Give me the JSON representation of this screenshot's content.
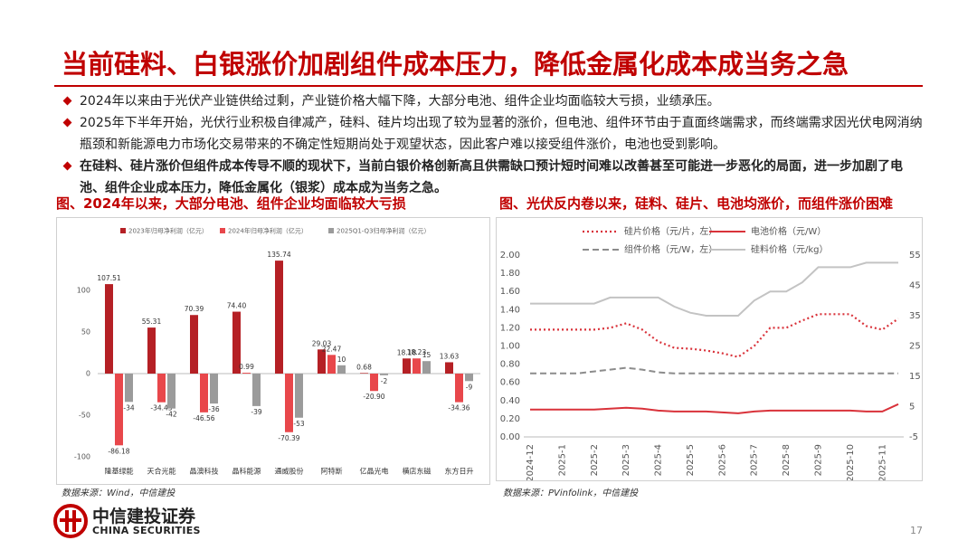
{
  "header": {
    "title": "当前硅料、白银涨价加剧组件成本压力，降低金属化成本成当务之急"
  },
  "bullets": [
    "2024年以来由于光伏产业链供给过剩，产业链价格大幅下降，大部分电池、组件企业均面临较大亏损，业绩承压。",
    "2025年下半年开始，光伏行业积极自律减产，硅料、硅片均出现了较为显著的涨价，但电池、组件环节由于直面终端需求，而终端需求因光伏电网消纳瓶颈和新能源电力市场化交易带来的不确定性短期尚处于观望状态，因此客户难以接受组件涨价，电池也受到影响。",
    "在硅料、硅片涨价但组件成本传导不顺的现状下，当前白银价格创新高且供需缺口预计短时间难以改善甚至可能进一步恶化的局面，进一步加剧了电池、组件企业成本压力，降低金属化（银浆）成本成为当务之急。"
  ],
  "chart_data": [
    {
      "type": "bar",
      "title": "图、2024年以来，大部分电池、组件企业均面临较大亏损",
      "source": "数据来源：Wind，中信建投",
      "categories": [
        "隆基绿能",
        "天合光能",
        "晶澳科技",
        "晶科能源",
        "通威股份",
        "阿特斯",
        "亿晶光电",
        "横店东磁",
        "东方日升"
      ],
      "series": [
        {
          "name": "2023年归母净利润（亿元）",
          "color": "#b52025",
          "values": [
            107.51,
            55.31,
            70.39,
            74.4,
            135.74,
            29.03,
            0.68,
            18.18,
            13.63
          ],
          "value_labels": [
            "107.51",
            "55.31",
            "70.39",
            "74.40",
            "135.74",
            "29.03",
            "0.68",
            "18.18",
            "13.63"
          ]
        },
        {
          "name": "2024年归母净利润（亿元）",
          "color": "#e8474b",
          "values": [
            -86.18,
            -34.43,
            -46.56,
            0.99,
            -70.39,
            22.47,
            -20.9,
            18.23,
            -34.36
          ],
          "value_labels": [
            "-86.18",
            "-34.43",
            "-46.56",
            "0.99",
            "-70.39",
            "22.47",
            "-20.90",
            "18.23",
            "-34.36"
          ]
        },
        {
          "name": "2025Q1-Q3归母净利润（亿元）",
          "color": "#9b9b9b",
          "values": [
            -34,
            -42,
            -36,
            -39,
            -53,
            10,
            -2,
            15,
            -9
          ],
          "value_labels": [
            "-34",
            "-42",
            "-36",
            "-39",
            "-53",
            "10",
            "-2",
            "15",
            "-9"
          ]
        }
      ],
      "ylim": [
        -100,
        150
      ],
      "yticks": [
        -100,
        -50,
        0,
        50,
        100
      ]
    },
    {
      "type": "line",
      "title": "图、光伏反内卷以来，硅料、硅片、电池均涨价，而组件涨价困难",
      "source": "数据来源：PVinfolink，中信建投",
      "categories": [
        "2024-12",
        null,
        "2025-1",
        null,
        "2025-2",
        null,
        "2025-3",
        null,
        "2025-4",
        null,
        "2025-5",
        null,
        "2025-6",
        null,
        "2025-7",
        null,
        "2025-8",
        null,
        "2025-9",
        null,
        "2025-10",
        null,
        "2025-11",
        null
      ],
      "series": [
        {
          "name": "硅片价格（元/片，左）",
          "color": "#d9323a",
          "style": "dotted",
          "values": [
            1.18,
            1.18,
            1.18,
            1.18,
            1.18,
            1.2,
            1.25,
            1.18,
            1.05,
            0.98,
            0.97,
            0.95,
            0.92,
            0.88,
            1.0,
            1.2,
            1.2,
            1.28,
            1.35,
            1.35,
            1.35,
            1.22,
            1.18,
            1.3
          ]
        },
        {
          "name": "电池价格（元/W）",
          "color": "#d9323a",
          "style": "solid",
          "values": [
            0.3,
            0.3,
            0.3,
            0.3,
            0.3,
            0.31,
            0.32,
            0.31,
            0.29,
            0.28,
            0.28,
            0.28,
            0.27,
            0.26,
            0.28,
            0.29,
            0.29,
            0.29,
            0.29,
            0.29,
            0.29,
            0.28,
            0.28,
            0.36
          ]
        },
        {
          "name": "组件价格（元/W，左）",
          "color": "#8c8c8c",
          "style": "dashed",
          "values": [
            0.7,
            0.7,
            0.7,
            0.7,
            0.72,
            0.74,
            0.76,
            0.74,
            0.71,
            0.7,
            0.7,
            0.7,
            0.7,
            0.7,
            0.7,
            0.7,
            0.7,
            0.7,
            0.7,
            0.7,
            0.7,
            0.7,
            0.7,
            0.7
          ]
        },
        {
          "name": "硅料价格（元/kg）",
          "color": "#c3c3c3",
          "style": "solid",
          "axis": "y2",
          "values": [
            39,
            39,
            39,
            39,
            39,
            41,
            41,
            41,
            41,
            38,
            36,
            35,
            35,
            35,
            40,
            43,
            43,
            46,
            51,
            51,
            51,
            52.5,
            52.5,
            52.5
          ]
        }
      ],
      "ylim": [
        0,
        2
      ],
      "yticks": [
        {
          "value": 0,
          "label": "0.00"
        },
        {
          "value": 0.2,
          "label": "0.20"
        },
        {
          "value": 0.4,
          "label": "0.40"
        },
        {
          "value": 0.6,
          "label": "0.60"
        },
        {
          "value": 0.8,
          "label": "0.80"
        },
        {
          "value": 1,
          "label": "1.00"
        },
        {
          "value": 1.2,
          "label": "1.20"
        },
        {
          "value": 1.4,
          "label": "1.40"
        },
        {
          "value": 1.6,
          "label": "1.60"
        },
        {
          "value": 1.8,
          "label": "1.80"
        },
        {
          "value": 2,
          "label": "2.00"
        }
      ],
      "y2lim": [
        -5,
        55
      ],
      "y2ticks": [
        -5,
        5,
        15,
        25,
        35,
        45,
        55
      ]
    }
  ],
  "footer": {
    "logo_cn": "中信建投证券",
    "logo_en": "CHINA SECURITIES",
    "page": "17"
  }
}
